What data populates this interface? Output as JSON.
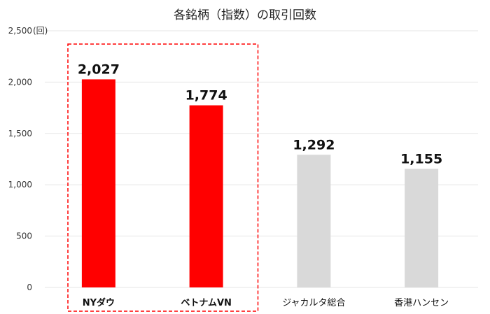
{
  "chart_data": {
    "type": "bar",
    "title": "各銘柄（指数）の取引回数",
    "unit_label": "(回)",
    "categories": [
      "NYダウ",
      "ベトナムVN",
      "ジャカルタ総合",
      "香港ハンセン"
    ],
    "values": [
      2027,
      1774,
      1292,
      1155
    ],
    "data_labels": [
      "2,027",
      "1,774",
      "1,292",
      "1,155"
    ],
    "highlighted": [
      true,
      true,
      false,
      false
    ],
    "ylim": [
      0,
      2500
    ],
    "yticks": [
      0,
      500,
      1000,
      1500,
      2000,
      2500
    ],
    "ytick_labels": [
      "0",
      "500",
      "1,000",
      "1,500",
      "2,000",
      "2,500"
    ],
    "grid": true,
    "colors": {
      "highlight": "#FF0000",
      "normal": "#D9D9D9",
      "box": "#FF0000",
      "grid": "#E5E5E5"
    }
  }
}
